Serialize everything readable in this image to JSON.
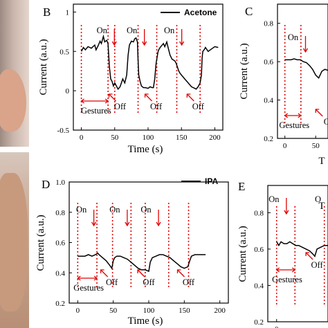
{
  "chart_data": [
    {
      "panel": "B",
      "type": "line",
      "legend": "Acetone",
      "xlabel": "Time (s)",
      "ylabel": "Current (a.u.)",
      "xlim": [
        -12,
        212
      ],
      "ylim": [
        -0.5,
        1.1
      ],
      "xticks": [
        0,
        50,
        100,
        150,
        200
      ],
      "yticks": [
        -0.5,
        0.0,
        0.5,
        1.0
      ],
      "series": [
        {
          "x": [
            0,
            3,
            6,
            10,
            15,
            20,
            22,
            25,
            28,
            30,
            33,
            35,
            38,
            40,
            42,
            44,
            46,
            48,
            50,
            55,
            58,
            62,
            65,
            68,
            70,
            72,
            75,
            78,
            80,
            82,
            84,
            85,
            86,
            88,
            90,
            93,
            96,
            100,
            103,
            106,
            108,
            110,
            112,
            114,
            115,
            116,
            118,
            120,
            123,
            125,
            128,
            130,
            133,
            136,
            140,
            142,
            144,
            146,
            148,
            150,
            155,
            160,
            165,
            170,
            172,
            175,
            178,
            180,
            181,
            182,
            184,
            186,
            190,
            195,
            200,
            205
          ],
          "y": [
            0.5,
            0.55,
            0.52,
            0.56,
            0.54,
            0.58,
            0.52,
            0.57,
            0.63,
            0.6,
            0.69,
            0.62,
            0.64,
            0.6,
            0.3,
            0.15,
            0.12,
            0.06,
            0.1,
            0.02,
            0.05,
            0.15,
            0.1,
            0.2,
            0.45,
            0.58,
            0.63,
            0.62,
            0.66,
            0.67,
            0.62,
            0.4,
            0.2,
            0.12,
            0.06,
            0.04,
            0.04,
            0.03,
            0.05,
            0.04,
            0.04,
            0.15,
            0.35,
            0.45,
            0.5,
            0.52,
            0.55,
            0.57,
            0.6,
            0.56,
            0.62,
            0.55,
            0.45,
            0.4,
            0.38,
            0.35,
            0.3,
            0.25,
            0.22,
            0.2,
            0.15,
            0.1,
            0.05,
            0.03,
            0.02,
            0.05,
            0.1,
            0.2,
            0.42,
            0.5,
            0.52,
            0.55,
            0.5,
            0.53,
            0.56,
            0.55
          ]
        }
      ],
      "markers": [
        0,
        40,
        50,
        85,
        113,
        143,
        178
      ],
      "on_labels": [
        {
          "text": "On",
          "x": 37
        },
        {
          "text": "On",
          "x": 82
        },
        {
          "text": "On",
          "x": 138
        }
      ],
      "off_labels": [
        {
          "text": "Off",
          "x": 58
        },
        {
          "text": "Off",
          "x": 112
        },
        {
          "text": "Off",
          "x": 175
        }
      ],
      "gestures_label": "Gestures"
    },
    {
      "panel": "C",
      "type": "line",
      "legend": "",
      "xlabel": "T",
      "ylabel": "Current (a.u.)",
      "xlim": [
        -12,
        70
      ],
      "ylim": [
        0.2,
        0.9
      ],
      "xticks": [
        0,
        50
      ],
      "yticks": [
        0.2,
        0.4,
        0.6,
        0.8
      ],
      "series": [
        {
          "x": [
            0,
            5,
            10,
            15,
            20,
            25,
            30,
            35,
            40,
            45,
            50,
            55,
            60,
            65,
            70
          ],
          "y": [
            0.61,
            0.61,
            0.61,
            0.615,
            0.61,
            0.61,
            0.6,
            0.595,
            0.58,
            0.56,
            0.53,
            0.515,
            0.55,
            0.56,
            0.555
          ]
        }
      ],
      "markers": [
        0,
        26
      ],
      "on_labels": [
        {
          "text": "On",
          "x": 20
        }
      ],
      "off_labels": [
        {
          "text": "O",
          "x": 68
        }
      ],
      "gestures_label": "Gestures"
    },
    {
      "panel": "D",
      "type": "line",
      "legend": "IPA",
      "xlabel": "Time (s)",
      "ylabel": "Current (a.u.)",
      "xlim": [
        -12,
        212
      ],
      "ylim": [
        0.2,
        1.0
      ],
      "xticks": [
        0,
        50,
        100,
        150,
        200
      ],
      "yticks": [
        0.2,
        0.4,
        0.6,
        0.8,
        1.0
      ],
      "series": [
        {
          "x": [
            0,
            5,
            10,
            15,
            20,
            25,
            28,
            30,
            35,
            40,
            45,
            48,
            50,
            52,
            55,
            60,
            65,
            70,
            75,
            80,
            85,
            90,
            95,
            100,
            102,
            105,
            110,
            115,
            120,
            125,
            130,
            135,
            140,
            145,
            150,
            155,
            157,
            160,
            165,
            170,
            175,
            180
          ],
          "y": [
            0.51,
            0.51,
            0.51,
            0.52,
            0.51,
            0.52,
            0.53,
            0.52,
            0.5,
            0.48,
            0.45,
            0.43,
            0.48,
            0.5,
            0.51,
            0.51,
            0.5,
            0.49,
            0.47,
            0.45,
            0.43,
            0.42,
            0.42,
            0.41,
            0.47,
            0.5,
            0.51,
            0.52,
            0.52,
            0.51,
            0.5,
            0.48,
            0.46,
            0.44,
            0.43,
            0.44,
            0.47,
            0.51,
            0.52,
            0.52,
            0.52,
            0.52
          ]
        }
      ],
      "markers": [
        0,
        27,
        49,
        75,
        95,
        128,
        156
      ],
      "on_labels": [
        {
          "text": "On",
          "x": 11
        },
        {
          "text": "On",
          "x": 58
        },
        {
          "text": "On",
          "x": 102
        }
      ],
      "off_labels": [
        {
          "text": "Off",
          "x": 48
        },
        {
          "text": "Off",
          "x": 100
        },
        {
          "text": "Off",
          "x": 156
        }
      ],
      "gestures_label": "Gestures"
    },
    {
      "panel": "E",
      "type": "line",
      "legend": "",
      "xlabel": "T",
      "ylabel": "Current (a.u.)",
      "xlim": [
        -12,
        70
      ],
      "ylim": [
        0.2,
        0.95
      ],
      "xticks": [
        0
      ],
      "yticks": [
        0.2,
        0.4,
        0.6,
        0.8
      ],
      "series": [
        {
          "x": [
            0,
            3,
            6,
            10,
            14,
            18,
            22,
            26,
            30,
            35,
            40,
            45,
            50,
            52,
            55,
            60,
            65,
            70
          ],
          "y": [
            0.64,
            0.62,
            0.64,
            0.63,
            0.63,
            0.64,
            0.63,
            0.62,
            0.62,
            0.61,
            0.6,
            0.59,
            0.57,
            0.56,
            0.6,
            0.61,
            0.62,
            0.62
          ]
        }
      ],
      "markers": [
        0,
        25,
        65
      ],
      "on_labels": [
        {
          "text": "On",
          "x": 2
        },
        {
          "text": "O",
          "x": 62
        }
      ],
      "off_labels": [
        {
          "text": "Off",
          "x": 55
        }
      ],
      "gestures_label": "Gestures"
    }
  ]
}
